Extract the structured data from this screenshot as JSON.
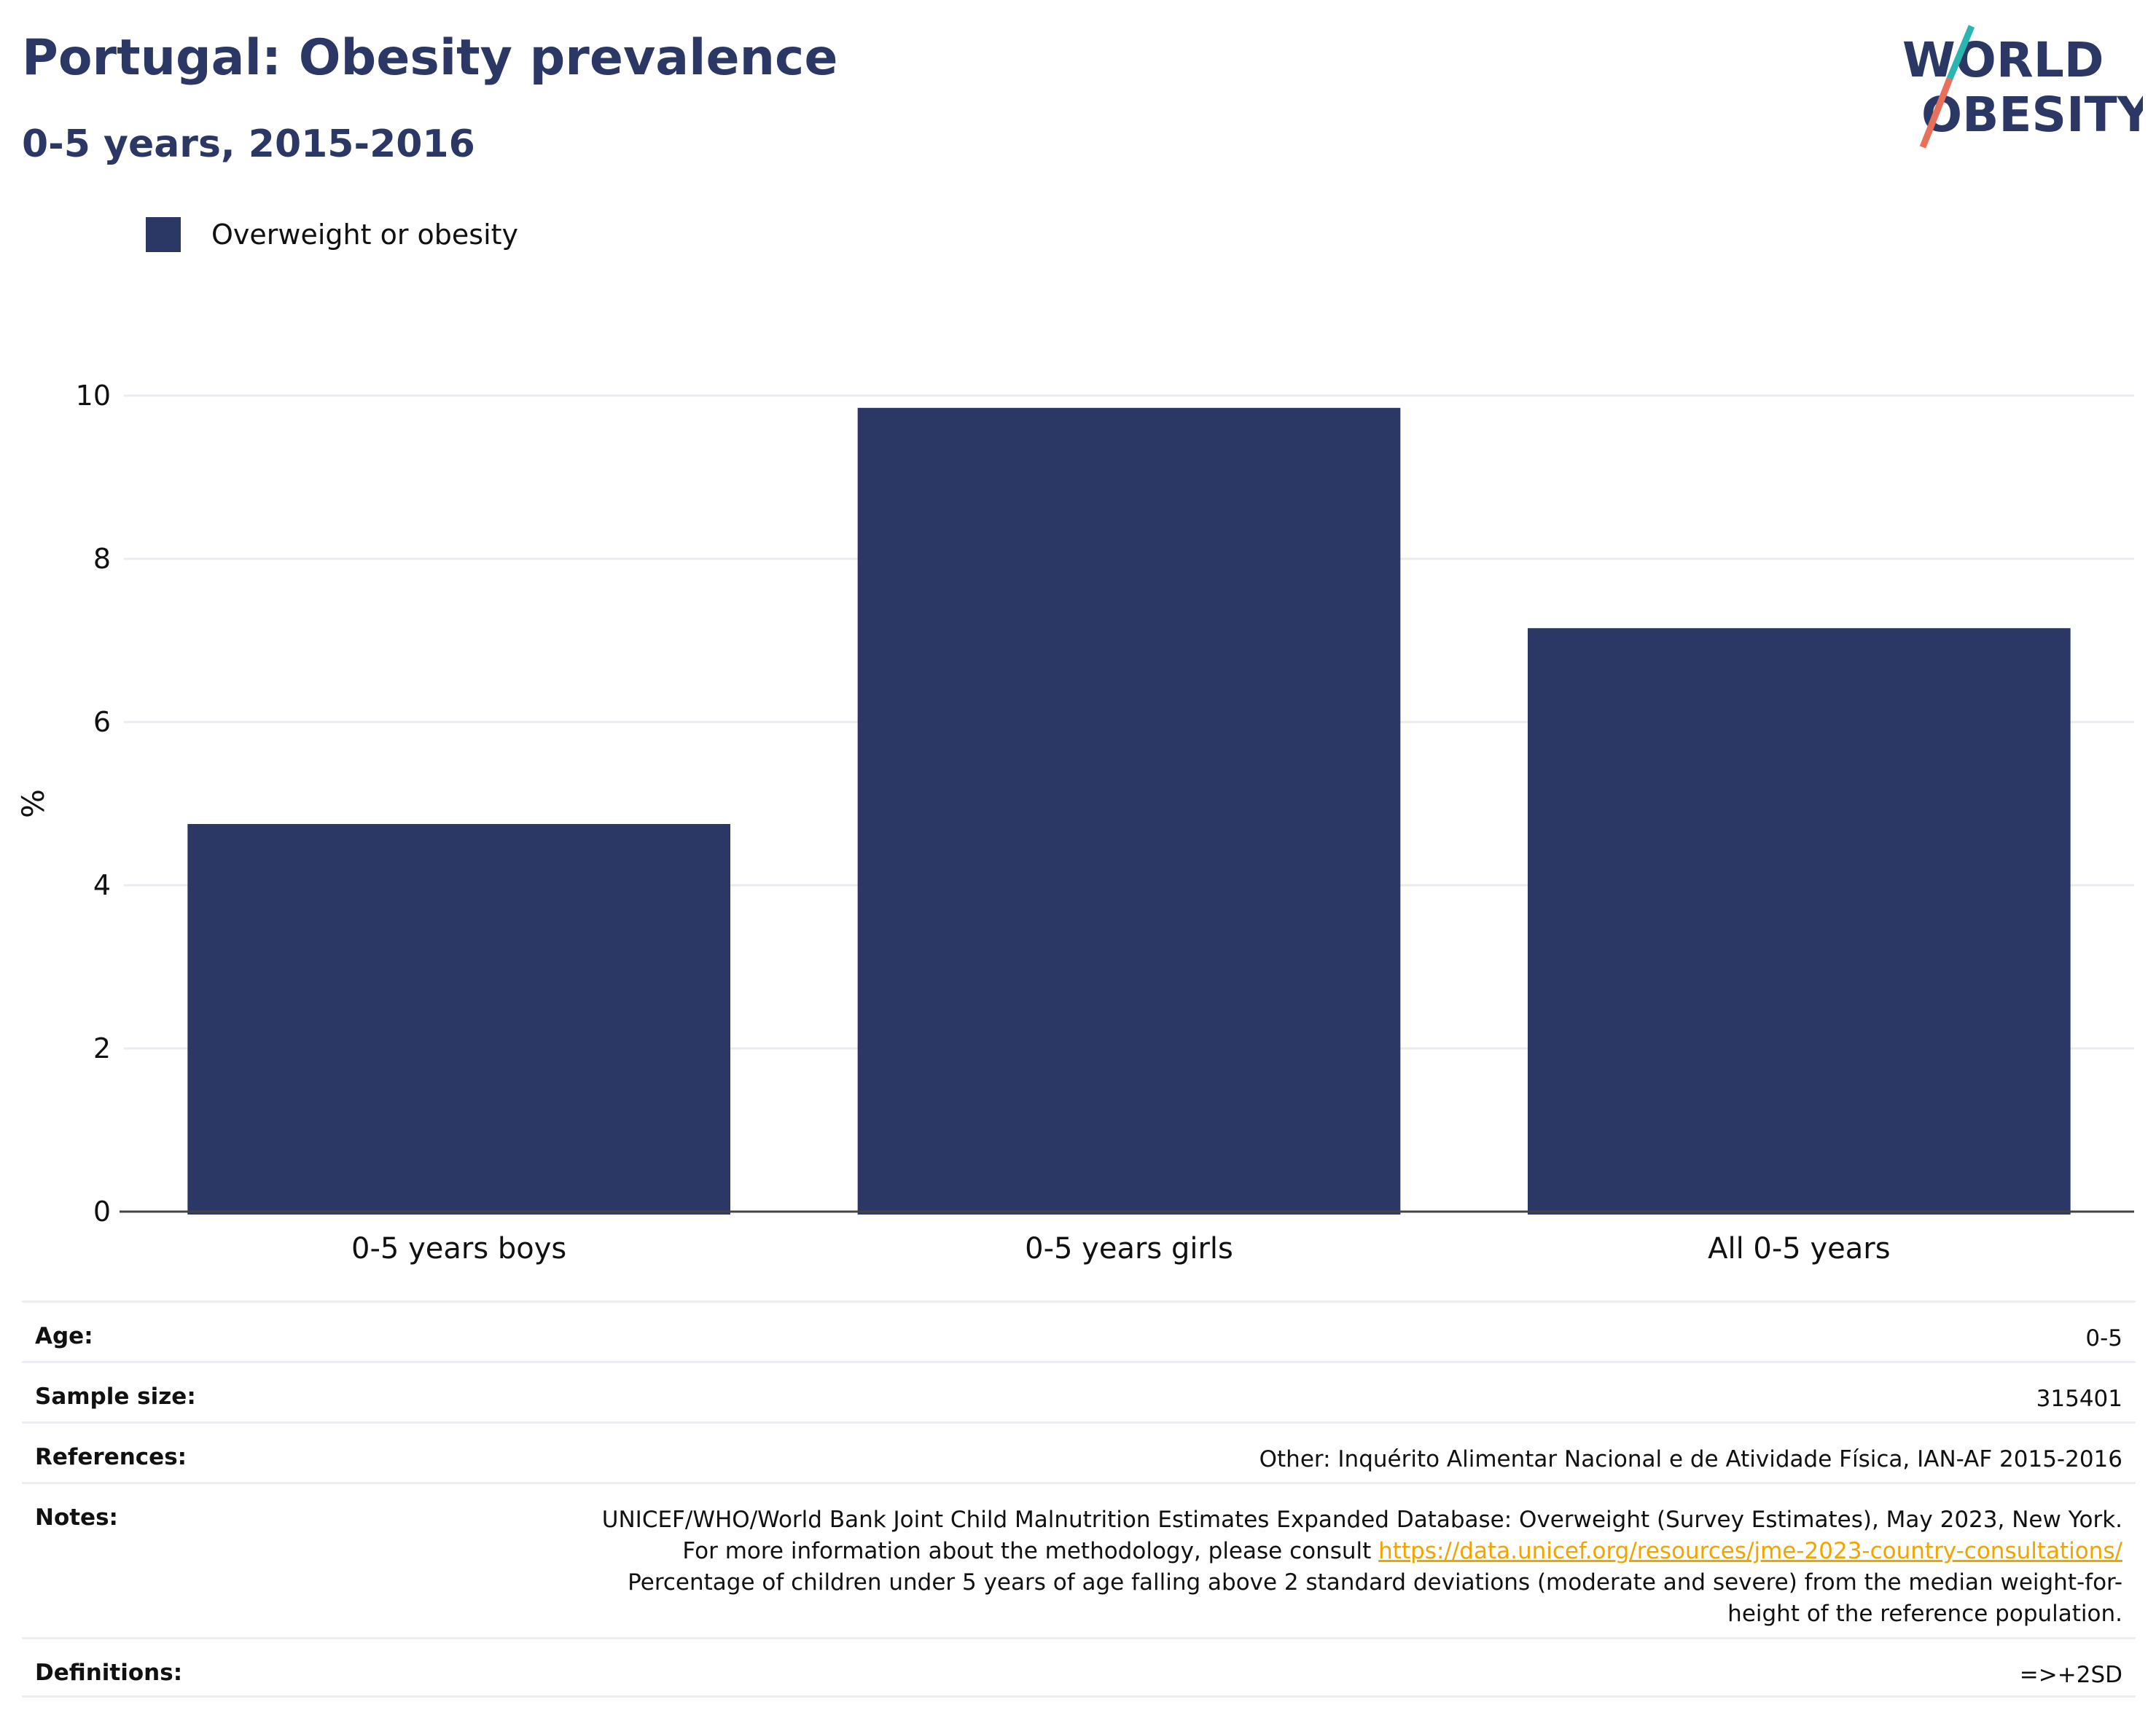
{
  "header": {
    "title": "Portugal: Obesity prevalence",
    "subtitle": "0-5 years, 2015-2016",
    "logo_line1": "WORLD",
    "logo_line2": "OBESITY"
  },
  "colors": {
    "bar": "#2b3764",
    "title": "#2b3764",
    "link": "#f0a400",
    "logo_teal": "#2bb5b0",
    "logo_coral": "#e8705a"
  },
  "chart_data": {
    "type": "bar",
    "categories": [
      "0-5 years boys",
      "0-5 years girls",
      "All 0-5 years"
    ],
    "series": [
      {
        "name": "Overweight or obesity",
        "values": [
          4.75,
          9.85,
          7.15
        ]
      }
    ],
    "ylabel": "%",
    "xlabel": "",
    "ylim": [
      0,
      10
    ],
    "yticks": [
      0,
      2,
      4,
      6,
      8,
      10
    ],
    "grid": true,
    "legend_position": "top-left"
  },
  "info": {
    "age_label": "Age:",
    "age_value": "0-5",
    "sample_label": "Sample size:",
    "sample_value": "315401",
    "references_label": "References:",
    "references_value": "Other: Inquérito Alimentar Nacional e de Atividade Física, IAN-AF 2015-2016",
    "notes_label": "Notes:",
    "notes_text1": "UNICEF/WHO/World Bank Joint Child Malnutrition Estimates Expanded Database: Overweight (Survey Estimates), May 2023, New York. For more information about the methodology, please consult ",
    "notes_link": "https://data.unicef.org/resources/jme-2023-country-consultations/",
    "notes_text2": " Percentage of children under 5 years of age falling above 2 standard deviations (moderate and severe) from the median weight-for-height of the reference population.",
    "definitions_label": "Definitions:",
    "definitions_value": "=>+2SD"
  }
}
